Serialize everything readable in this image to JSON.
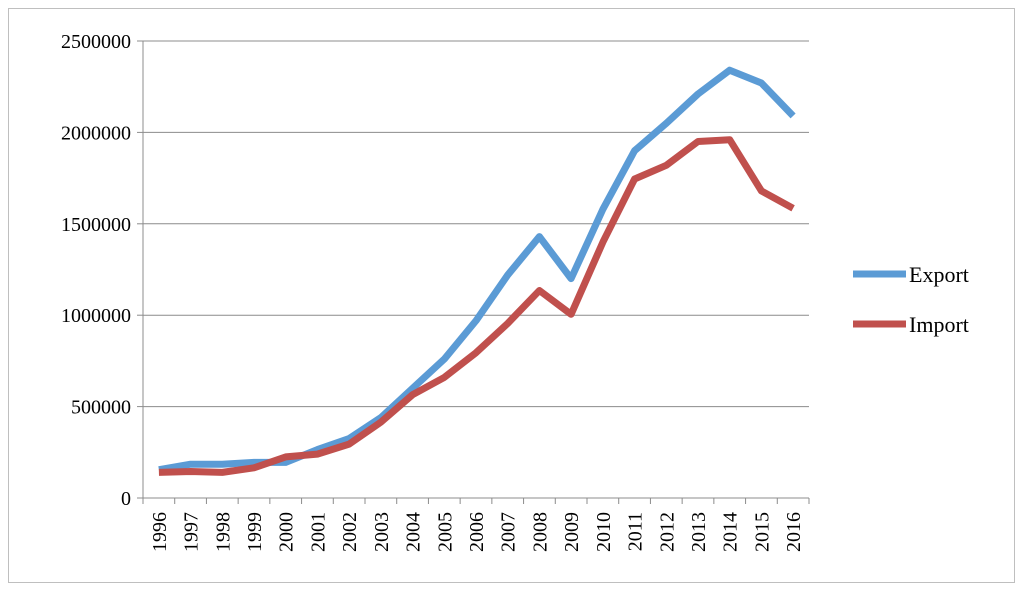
{
  "chart_data": {
    "type": "line",
    "title": "",
    "xlabel": "",
    "ylabel": "",
    "x": [
      "1996",
      "1997",
      "1998",
      "1999",
      "2000",
      "2001",
      "2002",
      "2003",
      "2004",
      "2005",
      "2006",
      "2007",
      "2008",
      "2009",
      "2010",
      "2011",
      "2012",
      "2013",
      "2014",
      "2015",
      "2016"
    ],
    "ylim": [
      0,
      2500000
    ],
    "yticks": [
      "0",
      "500000",
      "1000000",
      "1500000",
      "2000000",
      "2500000"
    ],
    "grid": true,
    "legend": "right",
    "series": [
      {
        "name": "Export",
        "color": "#5b9bd5",
        "values": [
          155000,
          185000,
          185000,
          195000,
          195000,
          265000,
          325000,
          440000,
          600000,
          760000,
          970000,
          1220000,
          1430000,
          1200000,
          1580000,
          1900000,
          2050000,
          2210000,
          2340000,
          2270000,
          2090000
        ]
      },
      {
        "name": "Import",
        "color": "#c0504d",
        "values": [
          140000,
          145000,
          140000,
          165000,
          225000,
          240000,
          295000,
          415000,
          565000,
          660000,
          795000,
          955000,
          1135000,
          1005000,
          1400000,
          1745000,
          1820000,
          1950000,
          1960000,
          1680000,
          1585000
        ]
      }
    ]
  }
}
